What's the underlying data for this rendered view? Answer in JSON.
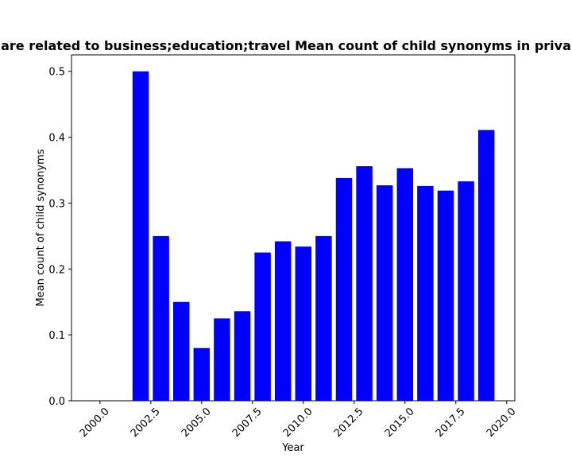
{
  "chart_data": {
    "type": "bar",
    "title": "are related to business;education;travel Mean count of child synonyms in priva",
    "xlabel": "Year",
    "ylabel": "Mean count of child synonyms",
    "x": [
      2001,
      2002,
      2003,
      2004,
      2005,
      2006,
      2007,
      2008,
      2009,
      2010,
      2011,
      2012,
      2013,
      2014,
      2015,
      2016,
      2017,
      2018,
      2019
    ],
    "values": [
      0.0,
      0.5,
      0.25,
      0.15,
      0.08,
      0.125,
      0.136,
      0.225,
      0.242,
      0.234,
      0.25,
      0.338,
      0.356,
      0.327,
      0.353,
      0.326,
      0.319,
      0.333,
      0.411
    ],
    "xlim": [
      1998.6,
      2020.4
    ],
    "ylim": [
      0,
      0.525
    ],
    "x_ticks": [
      "2000.0",
      "2002.5",
      "2005.0",
      "2007.5",
      "2010.0",
      "2012.5",
      "2015.0",
      "2017.5",
      "2020.0"
    ],
    "y_ticks": [
      "0.0",
      "0.1",
      "0.2",
      "0.3",
      "0.4",
      "0.5"
    ],
    "bar_color": "#0000ff",
    "grid": false
  }
}
